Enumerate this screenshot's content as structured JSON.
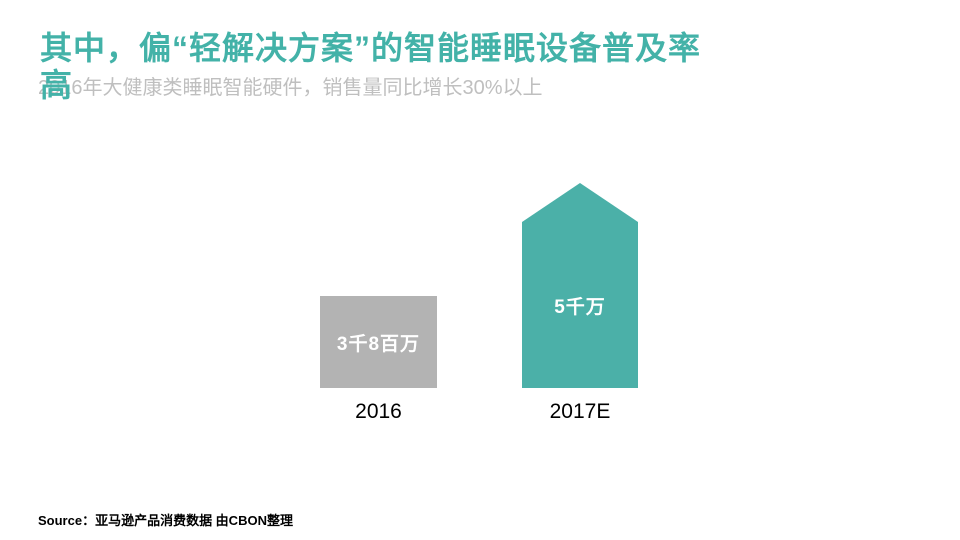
{
  "header": {
    "title_full": "其中，偏“轻解决方案”的智能睡眠设备普及率高",
    "title_line1": "其中，偏“轻解决方案”的智能睡眠设备普及率",
    "title_line2": "高",
    "subtitle": "2016年大健康类睡眠智能硬件，销售量同比增长30%以上"
  },
  "chart_data": {
    "type": "bar",
    "title": "其中，偏“轻解决方案”的智能睡眠设备普及率高",
    "subtitle": "2016年大健康类睡眠智能硬件，销售量同比增长30%以上",
    "categories": [
      "2016",
      "2017E"
    ],
    "values": [
      38000000,
      50000000
    ],
    "value_labels": [
      "3千8百万",
      "5千万"
    ],
    "bar_colors": [
      "#B3B3B3",
      "#4BB0A8"
    ],
    "bar_shapes": [
      "rectangle",
      "upward-arrow"
    ],
    "legend": "none",
    "grid": false,
    "axes_visible": false,
    "value_label_position": "inside-white"
  },
  "footer": {
    "source": "Source：亚马逊产品消费数据 由CBON整理"
  },
  "colors": {
    "accent_teal": "#4BB0A8",
    "title_teal": "#43B2A8",
    "bar_gray": "#B3B3B3",
    "subtitle_gray": "#BFBFBF",
    "text_black": "#000000",
    "background": "#FFFFFF"
  }
}
